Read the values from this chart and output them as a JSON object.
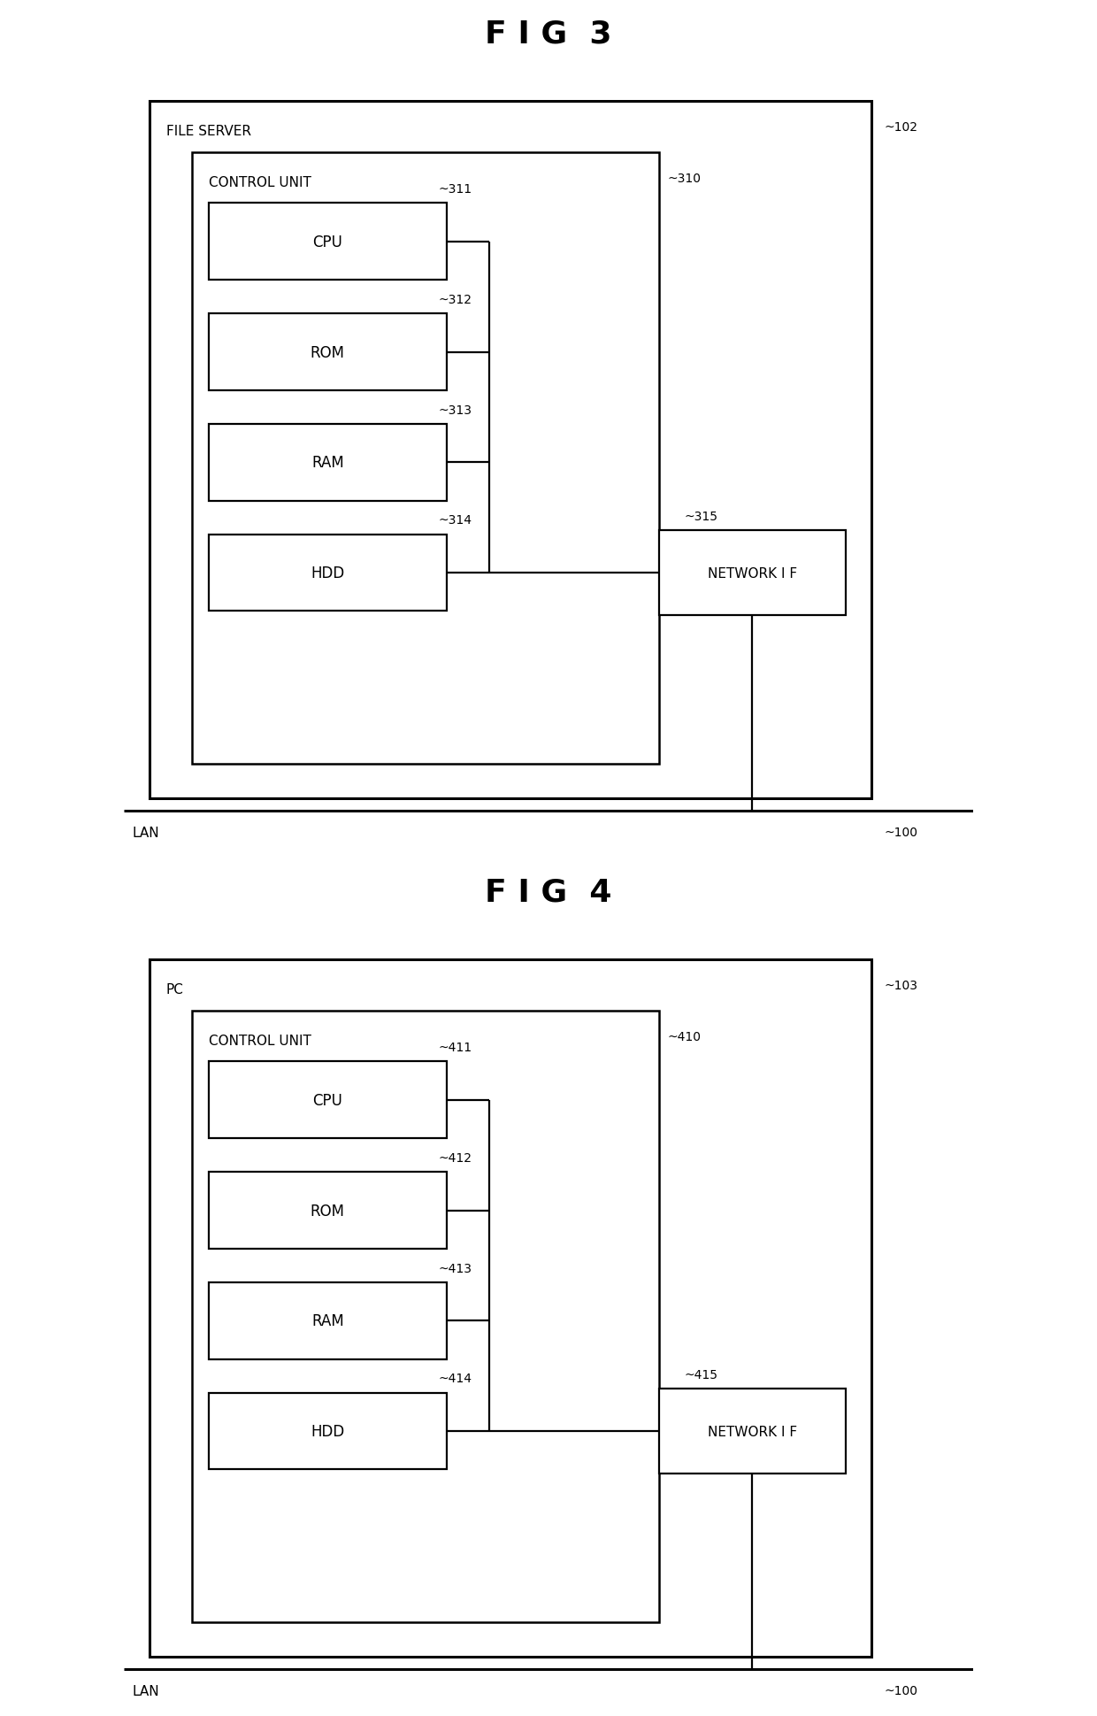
{
  "fig3": {
    "title": "F I G  3",
    "outer_box_label": "FILE SERVER",
    "outer_box_ref": "~102",
    "inner_box_label": "CONTROL UNIT",
    "inner_box_ref": "~310",
    "components": [
      "CPU",
      "ROM",
      "RAM",
      "HDD"
    ],
    "component_refs": [
      "~311",
      "~312",
      "~313",
      "~314"
    ],
    "network_label": "NETWORK I F",
    "network_ref": "~315",
    "lan_label": "LAN",
    "lan_ref": "~100"
  },
  "fig4": {
    "title": "F I G  4",
    "outer_box_label": "PC",
    "outer_box_ref": "~103",
    "inner_box_label": "CONTROL UNIT",
    "inner_box_ref": "~410",
    "components": [
      "CPU",
      "ROM",
      "RAM",
      "HDD"
    ],
    "component_refs": [
      "~411",
      "~412",
      "~413",
      "~414"
    ],
    "network_label": "NETWORK I F",
    "network_ref": "~415",
    "lan_label": "LAN",
    "lan_ref": "~100"
  },
  "colors": {
    "background": "#ffffff",
    "box_edge": "#000000",
    "text": "#000000"
  }
}
